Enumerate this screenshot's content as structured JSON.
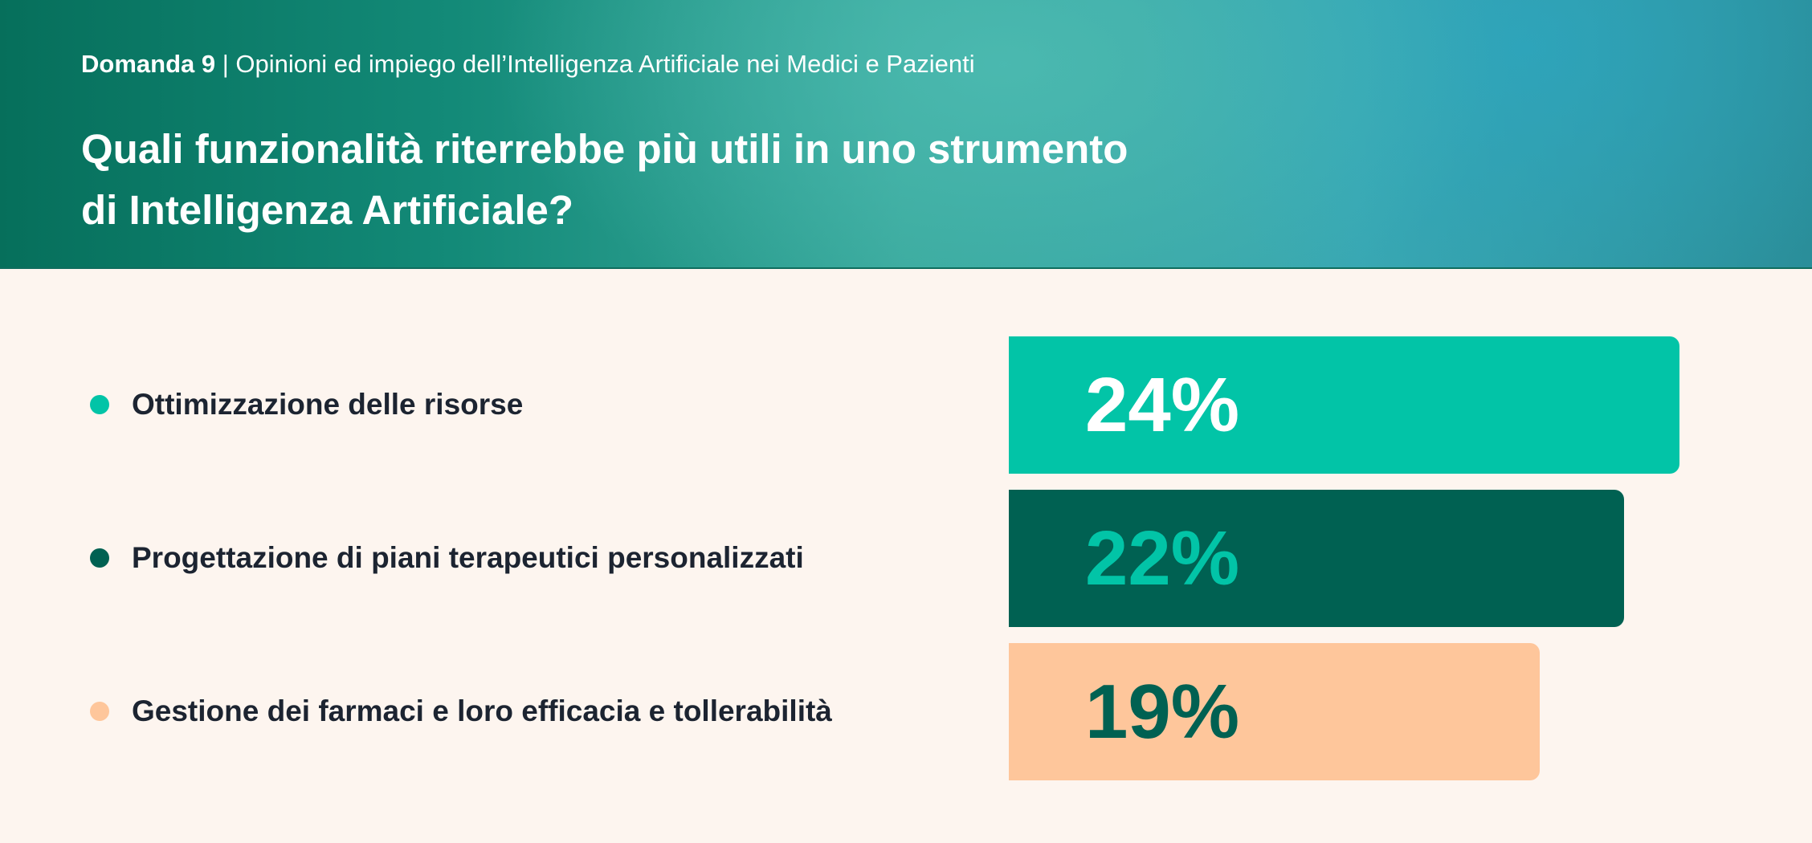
{
  "header": {
    "question_number": "Domanda 9",
    "separator": "|",
    "section": "Opinioni ed impiego dell’Intelligenza Artificiale nei Medici e Pazienti",
    "title_line1": "Quali funzionalità riterrebbe più utili in uno strumento",
    "title_line2": "di Intelligenza Artificiale?"
  },
  "chart_data": {
    "type": "bar",
    "orientation": "horizontal",
    "title": "Quali funzionalità riterrebbe più utili in uno strumento di Intelligenza Artificiale?",
    "categories": [
      "Ottimizzazione delle risorse",
      "Progettazione di piani terapeutici personalizzati",
      "Gestione dei farmaci e loro efficacia e tollerabilità"
    ],
    "values": [
      24,
      22,
      19
    ],
    "labels": [
      "24%",
      "22%",
      "19%"
    ],
    "unit": "%",
    "colors": [
      "#02c4a7",
      "#006152",
      "#fec69b"
    ],
    "label_colors": [
      "#ffffff",
      "#02c4a7",
      "#006152"
    ],
    "xlim": [
      0,
      24
    ]
  }
}
